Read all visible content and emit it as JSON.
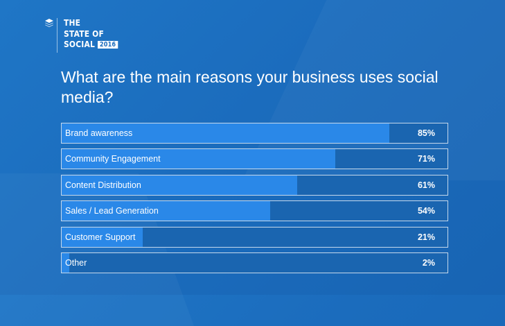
{
  "brand": {
    "title_lines": [
      "THE",
      "STATE OF",
      "SOCIAL"
    ],
    "year": "2016",
    "icon": "layers-icon"
  },
  "question": "What are the main reasons your business uses social media?",
  "colors": {
    "background": "#1b6cbd",
    "bar_fill": "#2a88e8",
    "bar_track": "#1a65b0",
    "text": "#ffffff"
  },
  "chart_data": {
    "type": "bar",
    "orientation": "horizontal",
    "categories": [
      "Brand awareness",
      "Community Engagement",
      "Content Distribution",
      "Sales / Lead Generation",
      "Customer Support",
      "Other"
    ],
    "values": [
      85,
      71,
      61,
      54,
      21,
      2
    ],
    "value_labels": [
      "85%",
      "71%",
      "61%",
      "54%",
      "21%",
      "2%"
    ],
    "xlim": [
      0,
      100
    ],
    "grid": false,
    "legend": "none"
  }
}
